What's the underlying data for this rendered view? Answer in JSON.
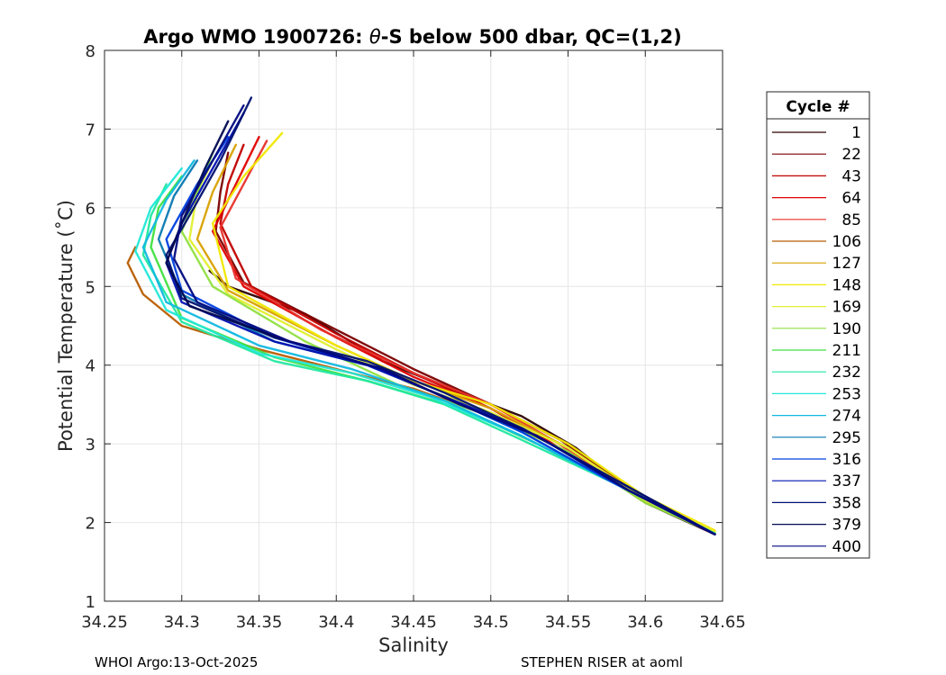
{
  "chart_data": {
    "type": "line",
    "title_prefix": "Argo WMO 1900726: ",
    "title_theta": "θ",
    "title_suffix": "-S below 500 dbar,  QC=(1,2)",
    "xlabel": "Salinity",
    "ylabel": "Potential Temperature (˚C)",
    "xlim": [
      34.25,
      34.65
    ],
    "ylim": [
      1,
      8
    ],
    "xticks": [
      "34.25",
      "34.3",
      "34.35",
      "34.4",
      "34.45",
      "34.5",
      "34.55",
      "34.6",
      "34.65"
    ],
    "yticks": [
      "1",
      "2",
      "3",
      "4",
      "5",
      "6",
      "7",
      "8"
    ],
    "grid": true,
    "legend_position": "outside-right",
    "legend": {
      "title": "Cycle #",
      "entries": [
        {
          "label": "1",
          "color": "#2b0000"
        },
        {
          "label": "22",
          "color": "#7a0000"
        },
        {
          "label": "43",
          "color": "#c00000"
        },
        {
          "label": "64",
          "color": "#e00000"
        },
        {
          "label": "85",
          "color": "#e8302a"
        },
        {
          "label": "106",
          "color": "#b85c00"
        },
        {
          "label": "127",
          "color": "#d8a000"
        },
        {
          "label": "148",
          "color": "#f0e800"
        },
        {
          "label": "169",
          "color": "#e0f030"
        },
        {
          "label": "190",
          "color": "#90e040"
        },
        {
          "label": "211",
          "color": "#40e040"
        },
        {
          "label": "232",
          "color": "#20e8a0"
        },
        {
          "label": "253",
          "color": "#20e8d8"
        },
        {
          "label": "274",
          "color": "#10b8e0"
        },
        {
          "label": "295",
          "color": "#0878b0"
        },
        {
          "label": "316",
          "color": "#0040e0"
        },
        {
          "label": "337",
          "color": "#0010b0"
        },
        {
          "label": "358",
          "color": "#001070"
        },
        {
          "label": "379",
          "color": "#000850"
        },
        {
          "label": "400",
          "color": "#000880"
        }
      ]
    },
    "series": [
      {
        "name": "1",
        "color": "#2b0000",
        "salinity": [
          34.318,
          34.33,
          34.38,
          34.43,
          34.48,
          34.52,
          34.555,
          34.6,
          34.645
        ],
        "theta": [
          5.2,
          5.0,
          4.65,
          4.05,
          3.65,
          3.35,
          2.95,
          2.25,
          1.85
        ]
      },
      {
        "name": "22",
        "color": "#7a0000",
        "salinity": [
          34.33,
          34.325,
          34.322,
          34.34,
          34.4,
          34.45,
          34.5,
          34.545,
          34.6,
          34.645
        ],
        "theta": [
          6.7,
          6.2,
          5.7,
          5.05,
          4.45,
          3.95,
          3.5,
          3.05,
          2.3,
          1.85
        ]
      },
      {
        "name": "43",
        "color": "#c00000",
        "salinity": [
          34.34,
          34.33,
          34.325,
          34.345,
          34.4,
          34.45,
          34.5,
          34.54,
          34.6,
          34.645
        ],
        "theta": [
          6.8,
          6.3,
          5.8,
          5.0,
          4.4,
          3.9,
          3.45,
          3.0,
          2.28,
          1.85
        ]
      },
      {
        "name": "64",
        "color": "#e00000",
        "salinity": [
          34.35,
          34.335,
          34.32,
          34.34,
          34.4,
          34.45,
          34.5,
          34.54,
          34.6,
          34.645
        ],
        "theta": [
          6.9,
          6.3,
          5.7,
          5.0,
          4.35,
          3.85,
          3.45,
          3.0,
          2.28,
          1.85
        ]
      },
      {
        "name": "85",
        "color": "#e8302a",
        "salinity": [
          34.355,
          34.34,
          34.325,
          34.335,
          34.39,
          34.45,
          34.5,
          34.54,
          34.6,
          34.645
        ],
        "theta": [
          6.85,
          6.3,
          5.75,
          5.1,
          4.45,
          3.9,
          3.5,
          3.05,
          2.3,
          1.85
        ]
      },
      {
        "name": "106",
        "color": "#b85c00",
        "salinity": [
          34.27,
          34.265,
          34.275,
          34.3,
          34.35,
          34.4,
          34.45,
          34.5,
          34.55,
          34.6,
          34.645
        ],
        "theta": [
          5.5,
          5.3,
          4.9,
          4.5,
          4.2,
          3.95,
          3.7,
          3.35,
          2.9,
          2.25,
          1.88
        ]
      },
      {
        "name": "127",
        "color": "#d8a000",
        "salinity": [
          34.335,
          34.32,
          34.31,
          34.33,
          34.4,
          34.45,
          34.5,
          34.55,
          34.6,
          34.645
        ],
        "theta": [
          6.8,
          6.2,
          5.6,
          4.95,
          4.25,
          3.8,
          3.45,
          2.95,
          2.3,
          1.88
        ]
      },
      {
        "name": "148",
        "color": "#f0e800",
        "salinity": [
          34.365,
          34.34,
          34.32,
          34.33,
          34.4,
          34.45,
          34.5,
          34.55,
          34.6,
          34.645
        ],
        "theta": [
          6.95,
          6.4,
          5.8,
          5.0,
          4.25,
          3.8,
          3.5,
          3.0,
          2.33,
          1.9
        ]
      },
      {
        "name": "169",
        "color": "#e0f030",
        "salinity": [
          34.32,
          34.31,
          34.305,
          34.33,
          34.4,
          34.45,
          34.5,
          34.55,
          34.6,
          34.645
        ],
        "theta": [
          6.6,
          6.2,
          5.6,
          4.9,
          4.2,
          3.75,
          3.4,
          2.95,
          2.28,
          1.88
        ]
      },
      {
        "name": "190",
        "color": "#90e040",
        "salinity": [
          34.32,
          34.31,
          34.3,
          34.32,
          34.38,
          34.44,
          34.5,
          34.55,
          34.6,
          34.645
        ],
        "theta": [
          6.7,
          6.2,
          5.7,
          5.0,
          4.3,
          3.75,
          3.35,
          2.9,
          2.25,
          1.86
        ]
      },
      {
        "name": "211",
        "color": "#40e040",
        "salinity": [
          34.3,
          34.285,
          34.28,
          34.3,
          34.36,
          34.42,
          34.48,
          34.53,
          34.58,
          34.645
        ],
        "theta": [
          6.4,
          6.0,
          5.5,
          4.6,
          4.1,
          3.8,
          3.45,
          3.0,
          2.5,
          1.86
        ]
      },
      {
        "name": "232",
        "color": "#20e8a0",
        "salinity": [
          34.29,
          34.28,
          34.275,
          34.3,
          34.36,
          34.42,
          34.47,
          34.52,
          34.58,
          34.645
        ],
        "theta": [
          6.3,
          5.9,
          5.4,
          4.55,
          4.05,
          3.8,
          3.5,
          3.05,
          2.5,
          1.86
        ]
      },
      {
        "name": "253",
        "color": "#20e8d8",
        "salinity": [
          34.3,
          34.28,
          34.27,
          34.29,
          34.35,
          34.41,
          34.46,
          34.52,
          34.58,
          34.645
        ],
        "theta": [
          6.5,
          6.0,
          5.45,
          4.7,
          4.15,
          3.9,
          3.6,
          3.1,
          2.5,
          1.85
        ]
      },
      {
        "name": "274",
        "color": "#10b8e0",
        "salinity": [
          34.308,
          34.29,
          34.275,
          34.29,
          34.35,
          34.41,
          34.47,
          34.52,
          34.58,
          34.645
        ],
        "theta": [
          6.6,
          6.1,
          5.5,
          4.8,
          4.25,
          3.95,
          3.55,
          3.1,
          2.5,
          1.85
        ]
      },
      {
        "name": "295",
        "color": "#0878b0",
        "salinity": [
          34.31,
          34.295,
          34.285,
          34.3,
          34.36,
          34.42,
          34.47,
          34.52,
          34.58,
          34.645
        ],
        "theta": [
          6.6,
          6.15,
          5.6,
          4.9,
          4.3,
          4.0,
          3.6,
          3.15,
          2.5,
          1.85
        ]
      },
      {
        "name": "316",
        "color": "#0040e0",
        "salinity": [
          34.33,
          34.31,
          34.29,
          34.3,
          34.36,
          34.42,
          34.47,
          34.52,
          34.58,
          34.645
        ],
        "theta": [
          6.9,
          6.3,
          5.6,
          4.95,
          4.35,
          4.0,
          3.6,
          3.15,
          2.5,
          1.85
        ]
      },
      {
        "name": "337",
        "color": "#0010b0",
        "salinity": [
          34.34,
          34.32,
          34.3,
          34.29,
          34.3,
          34.36,
          34.42,
          34.47,
          34.52,
          34.58,
          34.645
        ],
        "theta": [
          7.2,
          6.5,
          5.8,
          5.3,
          4.8,
          4.3,
          4.0,
          3.6,
          3.2,
          2.55,
          1.85
        ]
      },
      {
        "name": "358",
        "color": "#001070",
        "salinity": [
          34.345,
          34.325,
          34.305,
          34.29,
          34.3,
          34.36,
          34.42,
          34.47,
          34.52,
          34.58,
          34.645
        ],
        "theta": [
          7.4,
          6.6,
          5.9,
          5.4,
          4.85,
          4.35,
          4.05,
          3.65,
          3.2,
          2.55,
          1.85
        ]
      },
      {
        "name": "379",
        "color": "#000850",
        "salinity": [
          34.33,
          34.315,
          34.3,
          34.29,
          34.305,
          34.37,
          34.43,
          34.48,
          34.53,
          34.59,
          34.645
        ],
        "theta": [
          7.1,
          6.5,
          5.8,
          5.3,
          4.75,
          4.3,
          3.95,
          3.5,
          3.1,
          2.4,
          1.85
        ]
      },
      {
        "name": "400",
        "color": "#000880",
        "salinity": [
          34.34,
          34.32,
          34.3,
          34.295,
          34.31,
          34.37,
          34.43,
          34.48,
          34.53,
          34.59,
          34.645
        ],
        "theta": [
          7.3,
          6.6,
          5.9,
          5.35,
          4.8,
          4.3,
          3.95,
          3.5,
          3.1,
          2.4,
          1.85
        ]
      }
    ]
  },
  "footer": {
    "left": "WHOI Argo:13-Oct-2025",
    "right": "STEPHEN RISER at aoml"
  }
}
